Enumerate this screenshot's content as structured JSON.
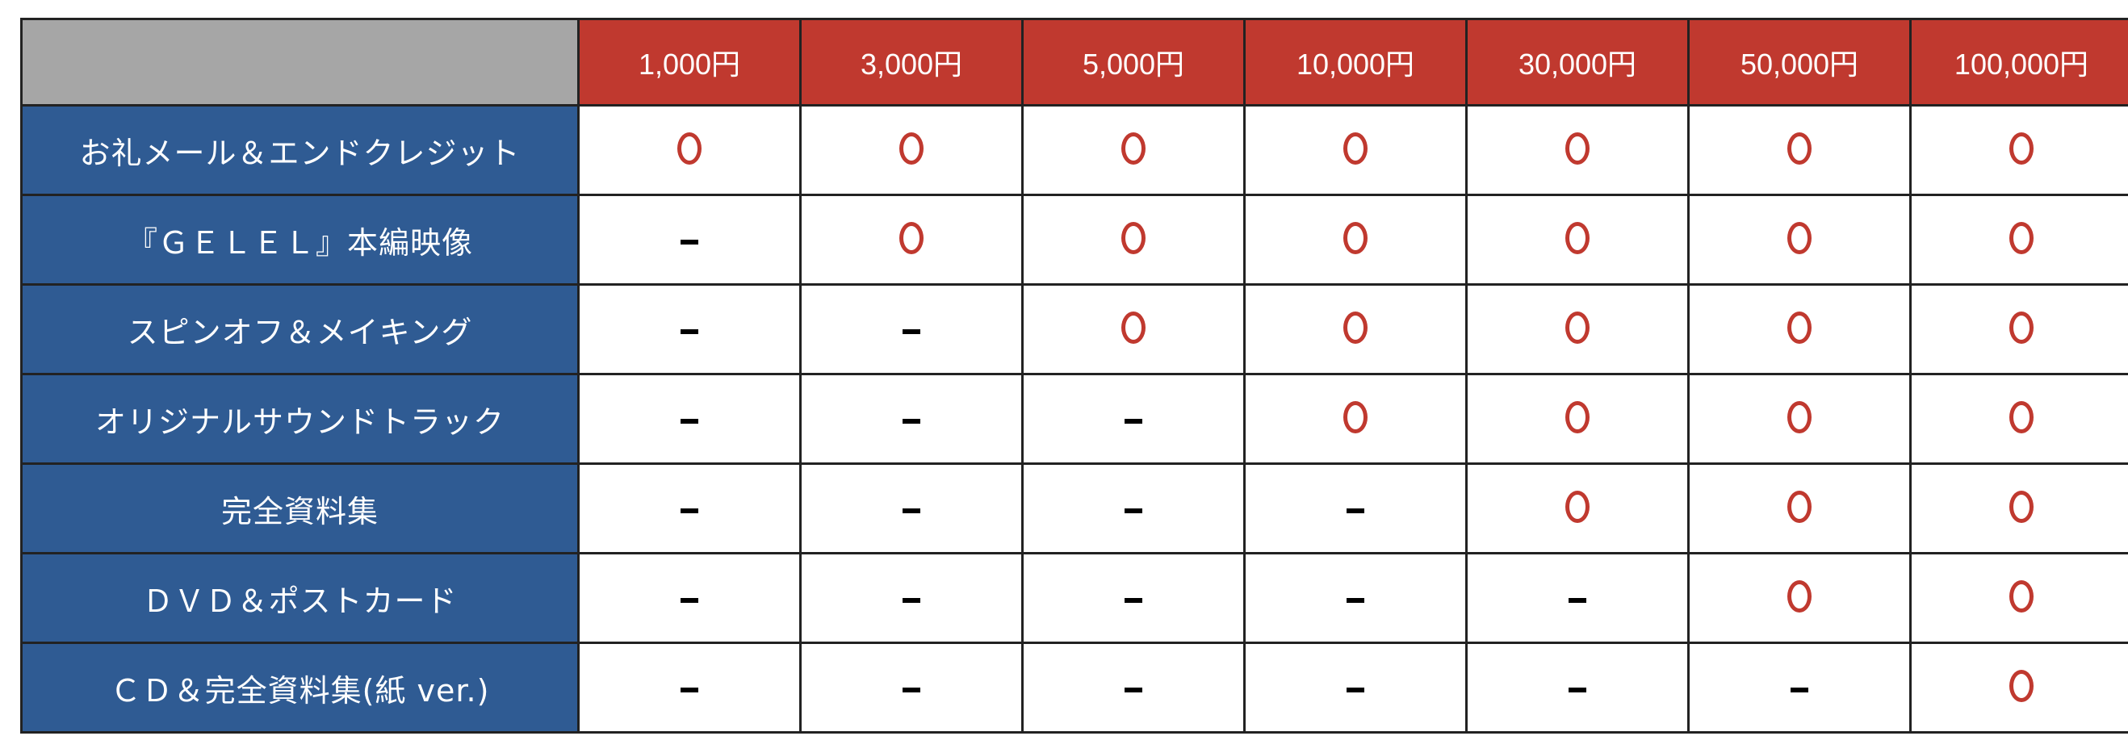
{
  "table": {
    "tiers": [
      "1,000円",
      "3,000円",
      "5,000円",
      "10,000円",
      "30,000円",
      "50,000円",
      "100,000円"
    ],
    "rows": [
      {
        "label": "お礼メール＆エンドクレジット",
        "cells": [
          "○",
          "○",
          "○",
          "○",
          "○",
          "○",
          "○"
        ]
      },
      {
        "label": "『ＧＥＬＥＬ』本編映像",
        "cells": [
          "-",
          "○",
          "○",
          "○",
          "○",
          "○",
          "○"
        ]
      },
      {
        "label": "スピンオフ＆メイキング",
        "cells": [
          "-",
          "-",
          "○",
          "○",
          "○",
          "○",
          "○"
        ]
      },
      {
        "label": "オリジナルサウンドトラック",
        "cells": [
          "-",
          "-",
          "-",
          "○",
          "○",
          "○",
          "○"
        ]
      },
      {
        "label": "完全資料集",
        "cells": [
          "-",
          "-",
          "-",
          "-",
          "○",
          "○",
          "○"
        ]
      },
      {
        "label": "ＤＶＤ＆ポストカード",
        "cells": [
          "-",
          "-",
          "-",
          "-",
          "-",
          "○",
          "○"
        ]
      },
      {
        "label": "ＣＤ＆完全資料集(紙 ver.)",
        "cells": [
          "-",
          "-",
          "-",
          "-",
          "-",
          "-",
          "○"
        ]
      }
    ]
  },
  "colors": {
    "header": "#c0392f",
    "label_bg": "#2f5b93",
    "corner": "#a6a6a6",
    "mark": "#c0392f"
  },
  "icons": {
    "included": "red-circle-icon",
    "excluded": "dash-icon"
  }
}
